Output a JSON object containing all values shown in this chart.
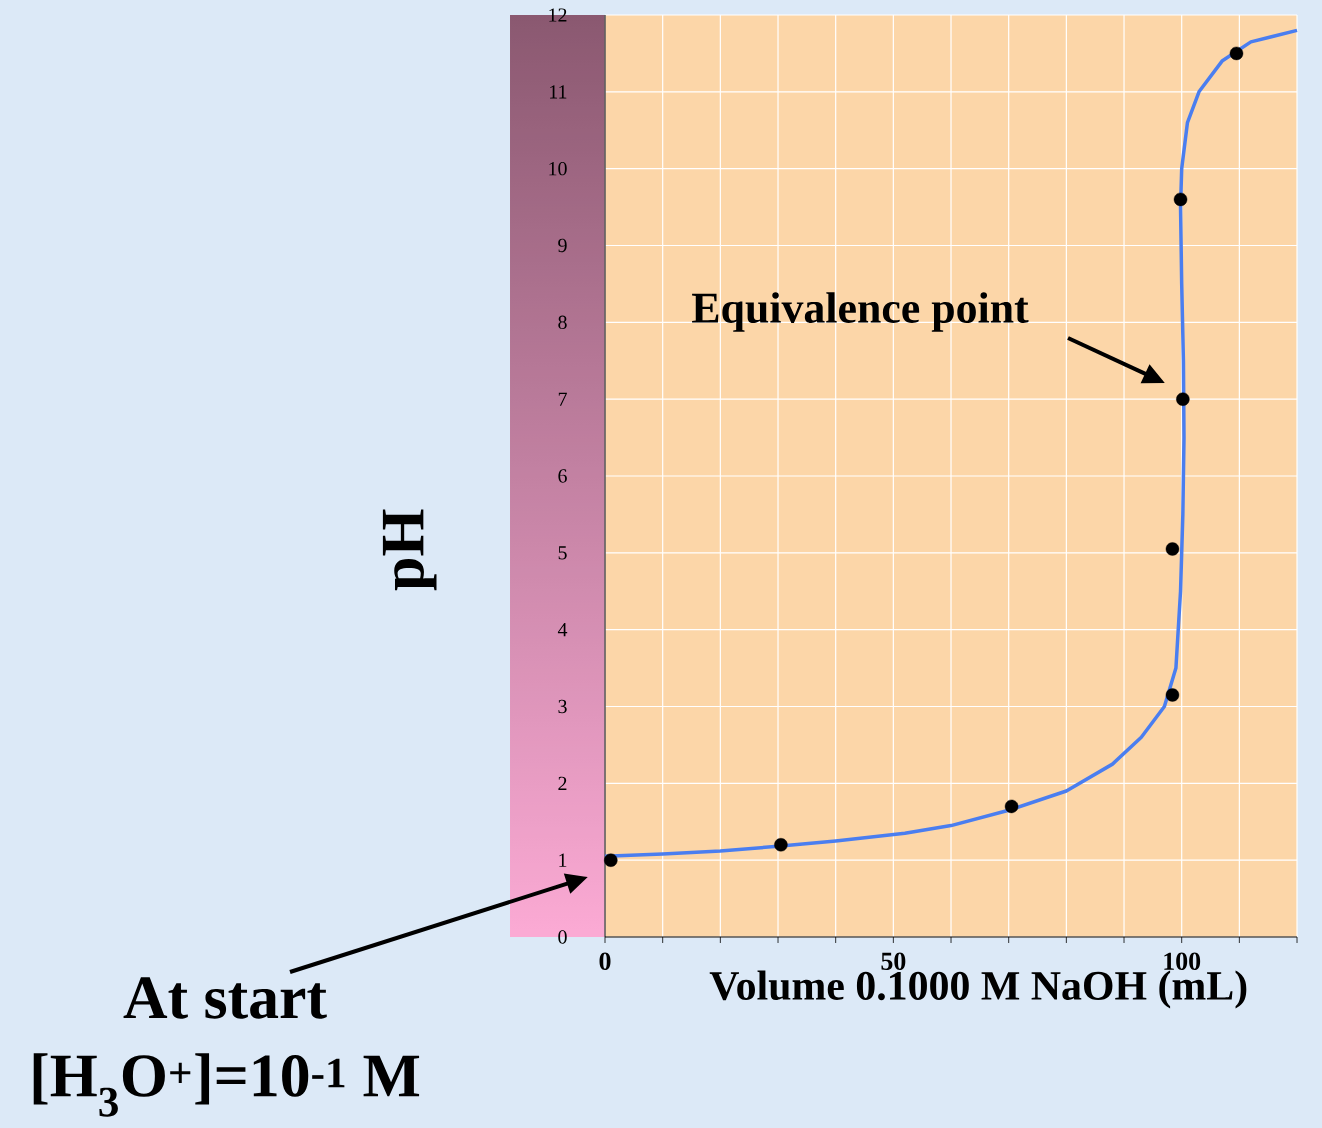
{
  "chart_data": {
    "type": "line",
    "xlabel": "Volume 0.1000 M NaOH (mL)",
    "ylabel": "pH",
    "xlim": [
      0,
      120
    ],
    "ylim": [
      0,
      12
    ],
    "xticks": [
      {
        "value": 0,
        "label": "0"
      },
      {
        "value": 10,
        "label": null
      },
      {
        "value": 20,
        "label": null
      },
      {
        "value": 30,
        "label": null
      },
      {
        "value": 40,
        "label": null
      },
      {
        "value": 50,
        "label": "50"
      },
      {
        "value": 60,
        "label": null
      },
      {
        "value": 70,
        "label": null
      },
      {
        "value": 80,
        "label": null
      },
      {
        "value": 90,
        "label": null
      },
      {
        "value": 100,
        "label": "100"
      },
      {
        "value": 110,
        "label": null
      },
      {
        "value": 120,
        "label": null
      }
    ],
    "yticks": [
      0,
      1,
      2,
      3,
      4,
      5,
      6,
      7,
      8,
      9,
      10,
      11,
      12
    ],
    "grid": true,
    "series": [
      {
        "color": "#4a7ef0",
        "marker": "none",
        "x": [
          0,
          10,
          20,
          30,
          40,
          52,
          60,
          70,
          80,
          88,
          93,
          97,
          99,
          99.8,
          100.2,
          100.4,
          100.3,
          100,
          99.8,
          100,
          101,
          103,
          107,
          112,
          120
        ],
        "values": [
          1.05,
          1.08,
          1.12,
          1.18,
          1.25,
          1.35,
          1.45,
          1.65,
          1.9,
          2.25,
          2.6,
          3.0,
          3.5,
          4.5,
          5.5,
          6.5,
          7.5,
          8.5,
          9.5,
          10.0,
          10.6,
          11.0,
          11.4,
          11.65,
          11.8
        ]
      },
      {
        "type": "scatter",
        "color": "#000000",
        "marker": "circle",
        "x": [
          1,
          30.5,
          70.5,
          98.4,
          98.4,
          100.2,
          99.8,
          109.5
        ],
        "values": [
          1.0,
          1.2,
          1.7,
          3.15,
          5.05,
          7.0,
          9.6,
          11.5
        ]
      }
    ],
    "annotations": [
      "Equivalence point",
      "At start",
      "[H$_{3}$O$^{+}$]=10$^{-1}$ M"
    ]
  }
}
